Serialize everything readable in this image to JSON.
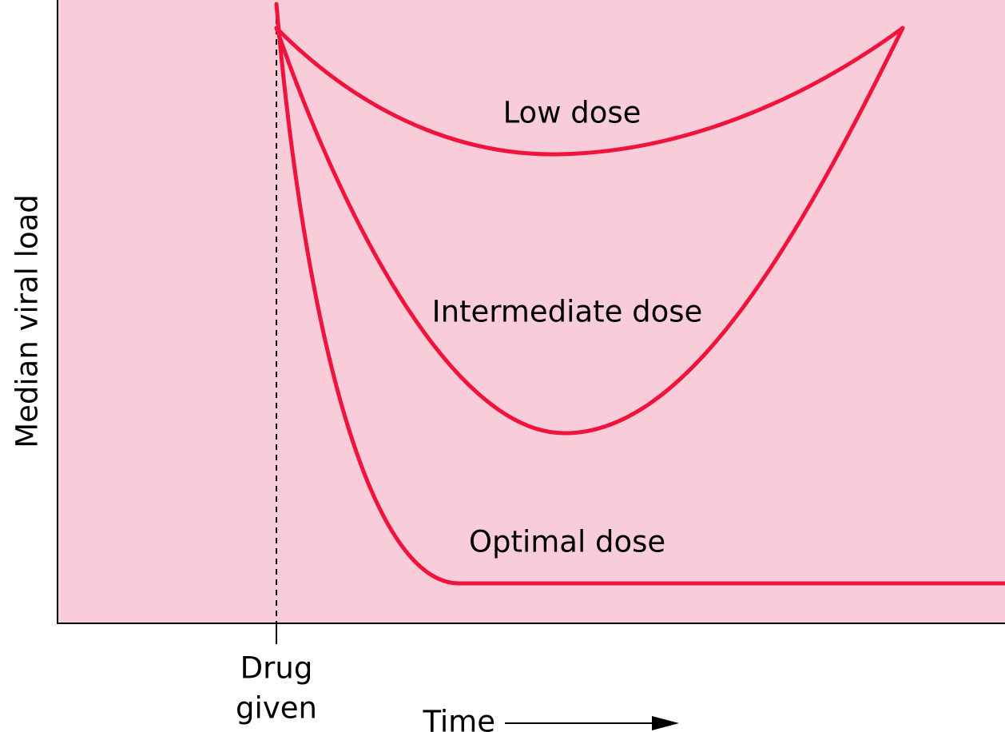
{
  "axes": {
    "y_label": "Median viral load",
    "x_label": "Time"
  },
  "marker": {
    "line1": "Drug",
    "line2": "given"
  },
  "curves": [
    {
      "label": "Low dose"
    },
    {
      "label": "Intermediate dose"
    },
    {
      "label": "Optimal dose"
    }
  ]
}
